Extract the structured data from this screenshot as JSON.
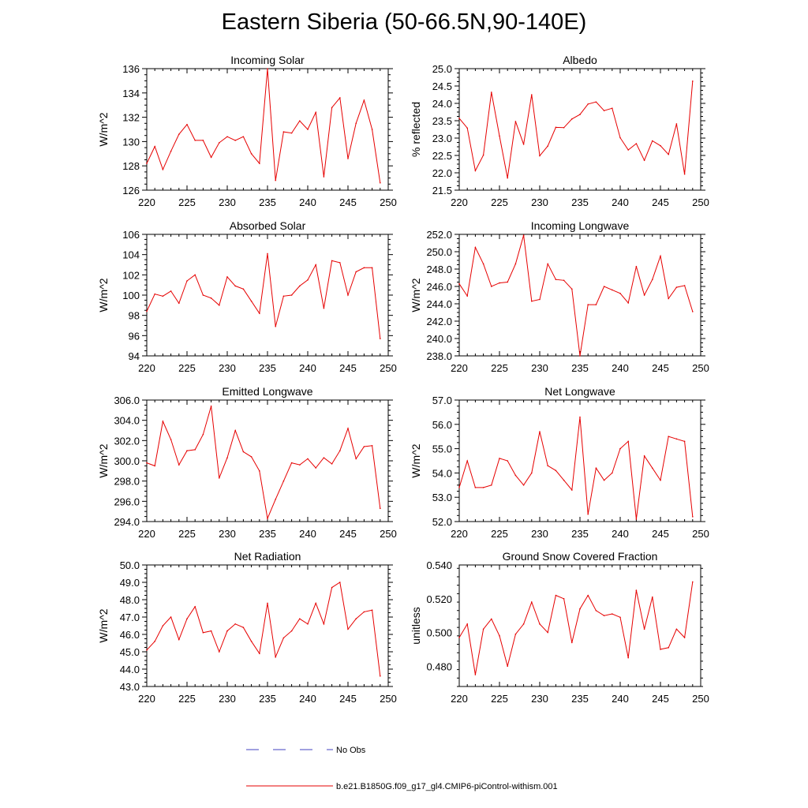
{
  "page": {
    "title": "Eastern Siberia (50-66.5N,90-140E)"
  },
  "colors": {
    "model_line": "#e60000",
    "obs_line": "#4040c0",
    "axis": "#000000"
  },
  "legend": {
    "obs_label": "No Obs",
    "model_label": "b.e21.B1850G.f09_g17_gl4.CMIP6-piControl-withism.001"
  },
  "chart_data": [
    {
      "type": "line",
      "title": "Incoming Solar",
      "ylabel": "W/m^2",
      "x": [
        220,
        221,
        222,
        223,
        224,
        225,
        226,
        227,
        228,
        229,
        230,
        231,
        232,
        233,
        234,
        235,
        236,
        237,
        238,
        239,
        240,
        241,
        242,
        243,
        244,
        245,
        246,
        247,
        248,
        249
      ],
      "values": [
        128.2,
        129.6,
        127.7,
        129.2,
        130.6,
        131.4,
        130.1,
        130.1,
        128.7,
        129.9,
        130.4,
        130.1,
        130.4,
        129.0,
        128.2,
        136.0,
        126.8,
        130.8,
        130.7,
        131.7,
        131.0,
        132.4,
        127.1,
        132.8,
        133.6,
        128.6,
        131.5,
        133.4,
        131.0,
        126.6
      ],
      "xlim": [
        220,
        250
      ],
      "ylim": [
        126,
        136
      ],
      "xticks": [
        220,
        225,
        230,
        235,
        240,
        245,
        250
      ],
      "yticks": [
        126,
        128,
        130,
        132,
        134,
        136
      ],
      "decimals": 0
    },
    {
      "type": "line",
      "title": "Albedo",
      "ylabel": "% reflected",
      "x": [
        220,
        221,
        222,
        223,
        224,
        225,
        226,
        227,
        228,
        229,
        230,
        231,
        232,
        233,
        234,
        235,
        236,
        237,
        238,
        239,
        240,
        241,
        242,
        243,
        244,
        245,
        246,
        247,
        248,
        249
      ],
      "values": [
        23.57,
        23.29,
        22.06,
        22.51,
        24.32,
        23.06,
        21.85,
        23.48,
        22.82,
        24.25,
        22.49,
        22.77,
        23.31,
        23.3,
        23.55,
        23.68,
        23.98,
        24.04,
        23.79,
        23.86,
        23.01,
        22.66,
        22.84,
        22.36,
        22.92,
        22.78,
        22.53,
        23.41,
        21.96,
        24.64
      ],
      "xlim": [
        220,
        250
      ],
      "ylim": [
        21.5,
        25.0
      ],
      "xticks": [
        220,
        225,
        230,
        235,
        240,
        245,
        250
      ],
      "yticks": [
        21.5,
        22.0,
        22.5,
        23.0,
        23.5,
        24.0,
        24.5,
        25.0
      ],
      "decimals": 1
    },
    {
      "type": "line",
      "title": "Absorbed Solar",
      "ylabel": "W/m^2",
      "x": [
        220,
        221,
        222,
        223,
        224,
        225,
        226,
        227,
        228,
        229,
        230,
        231,
        232,
        233,
        234,
        235,
        236,
        237,
        238,
        239,
        240,
        241,
        242,
        243,
        244,
        245,
        246,
        247,
        248,
        249
      ],
      "values": [
        98.4,
        100.1,
        99.9,
        100.4,
        99.2,
        101.4,
        102.0,
        100.0,
        99.7,
        99.0,
        101.8,
        100.9,
        100.6,
        99.4,
        98.2,
        104.1,
        96.9,
        99.9,
        100.0,
        100.9,
        101.5,
        103.0,
        98.7,
        103.4,
        103.2,
        100.0,
        102.3,
        102.7,
        102.7,
        95.7
      ],
      "xlim": [
        220,
        250
      ],
      "ylim": [
        94,
        106
      ],
      "xticks": [
        220,
        225,
        230,
        235,
        240,
        245,
        250
      ],
      "yticks": [
        94,
        96,
        98,
        100,
        102,
        104,
        106
      ],
      "decimals": 0
    },
    {
      "type": "line",
      "title": "Incoming Longwave",
      "ylabel": "W/m^2",
      "x": [
        220,
        221,
        222,
        223,
        224,
        225,
        226,
        227,
        228,
        229,
        230,
        231,
        232,
        233,
        234,
        235,
        236,
        237,
        238,
        239,
        240,
        241,
        242,
        243,
        244,
        245,
        246,
        247,
        248,
        249
      ],
      "values": [
        246.3,
        244.9,
        250.5,
        248.6,
        246.0,
        246.4,
        246.5,
        248.6,
        251.9,
        244.3,
        244.5,
        248.6,
        246.8,
        246.7,
        245.7,
        238.0,
        243.9,
        243.9,
        246.0,
        245.6,
        245.2,
        244.1,
        248.3,
        245.0,
        246.8,
        249.5,
        244.6,
        245.9,
        246.1,
        243.1
      ],
      "xlim": [
        220,
        250
      ],
      "ylim": [
        238,
        252
      ],
      "xticks": [
        220,
        225,
        230,
        235,
        240,
        245,
        250
      ],
      "yticks": [
        238,
        240,
        242,
        244,
        246,
        248,
        250,
        252
      ],
      "decimals": 1
    },
    {
      "type": "line",
      "title": "Emitted Longwave",
      "ylabel": "W/m^2",
      "x": [
        220,
        221,
        222,
        223,
        224,
        225,
        226,
        227,
        228,
        229,
        230,
        231,
        232,
        233,
        234,
        235,
        236,
        237,
        238,
        239,
        240,
        241,
        242,
        243,
        244,
        245,
        246,
        247,
        248,
        249
      ],
      "values": [
        299.8,
        299.5,
        303.9,
        302.1,
        299.6,
        301.0,
        301.1,
        302.6,
        305.4,
        298.3,
        300.3,
        303.0,
        300.9,
        300.4,
        299.0,
        294.3,
        296.2,
        298.0,
        299.8,
        299.6,
        300.2,
        299.3,
        300.3,
        299.7,
        301.0,
        303.2,
        300.2,
        301.4,
        301.5,
        295.3
      ],
      "xlim": [
        220,
        250
      ],
      "ylim": [
        294,
        306
      ],
      "xticks": [
        220,
        225,
        230,
        235,
        240,
        245,
        250
      ],
      "yticks": [
        294,
        296,
        298,
        300,
        302,
        304,
        306
      ],
      "decimals": 1
    },
    {
      "type": "line",
      "title": "Net Longwave",
      "ylabel": "W/m^2",
      "x": [
        220,
        221,
        222,
        223,
        224,
        225,
        226,
        227,
        228,
        229,
        230,
        231,
        232,
        233,
        234,
        235,
        236,
        237,
        238,
        239,
        240,
        241,
        242,
        243,
        244,
        245,
        246,
        247,
        248,
        249
      ],
      "values": [
        53.4,
        54.5,
        53.4,
        53.4,
        53.5,
        54.6,
        54.5,
        53.9,
        53.5,
        54.0,
        55.7,
        54.3,
        54.1,
        53.7,
        53.3,
        56.3,
        52.3,
        54.2,
        53.7,
        54.0,
        55.0,
        55.3,
        52.1,
        54.7,
        54.2,
        53.7,
        55.5,
        55.4,
        55.3,
        52.2
      ],
      "xlim": [
        220,
        250
      ],
      "ylim": [
        52,
        57
      ],
      "xticks": [
        220,
        225,
        230,
        235,
        240,
        245,
        250
      ],
      "yticks": [
        52,
        53,
        54,
        55,
        56,
        57
      ],
      "decimals": 1
    },
    {
      "type": "line",
      "title": "Net Radiation",
      "ylabel": "W/m^2",
      "x": [
        220,
        221,
        222,
        223,
        224,
        225,
        226,
        227,
        228,
        229,
        230,
        231,
        232,
        233,
        234,
        235,
        236,
        237,
        238,
        239,
        240,
        241,
        242,
        243,
        244,
        245,
        246,
        247,
        248,
        249
      ],
      "values": [
        45.1,
        45.6,
        46.5,
        47.0,
        45.7,
        46.9,
        47.6,
        46.1,
        46.2,
        45.0,
        46.2,
        46.6,
        46.4,
        45.6,
        44.9,
        47.8,
        44.7,
        45.8,
        46.2,
        46.9,
        46.6,
        47.8,
        46.6,
        48.7,
        49.0,
        46.3,
        46.9,
        47.3,
        47.4,
        43.6
      ],
      "xlim": [
        220,
        250
      ],
      "ylim": [
        43,
        50
      ],
      "xticks": [
        220,
        225,
        230,
        235,
        240,
        245,
        250
      ],
      "yticks": [
        43,
        44,
        45,
        46,
        47,
        48,
        49,
        50
      ],
      "decimals": 1
    },
    {
      "type": "line",
      "title": "Ground Snow Covered Fraction",
      "ylabel": "unitless",
      "x": [
        220,
        221,
        222,
        223,
        224,
        225,
        226,
        227,
        228,
        229,
        230,
        231,
        232,
        233,
        234,
        235,
        236,
        237,
        238,
        239,
        240,
        241,
        242,
        243,
        244,
        245,
        246,
        247,
        248,
        249
      ],
      "values": [
        0.497,
        0.505,
        0.475,
        0.502,
        0.508,
        0.498,
        0.48,
        0.499,
        0.505,
        0.518,
        0.505,
        0.5,
        0.522,
        0.52,
        0.494,
        0.514,
        0.522,
        0.513,
        0.51,
        0.511,
        0.509,
        0.485,
        0.525,
        0.502,
        0.521,
        0.49,
        0.491,
        0.502,
        0.497,
        0.53
      ],
      "xlim": [
        220,
        250
      ],
      "ylim": [
        0.468,
        0.54
      ],
      "xticks": [
        220,
        225,
        230,
        235,
        240,
        245,
        250
      ],
      "yticks": [
        0.48,
        0.5,
        0.52,
        0.54
      ],
      "decimals": 3
    }
  ]
}
